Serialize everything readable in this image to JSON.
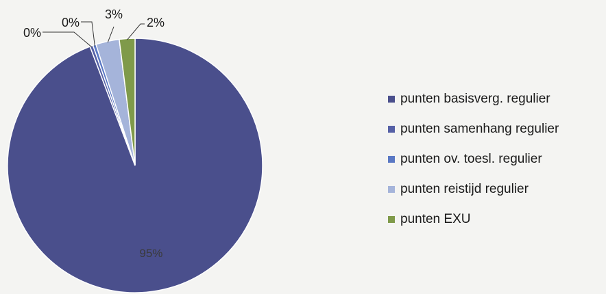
{
  "chart_data": {
    "type": "pie",
    "categories": [
      "punten basisverg. regulier",
      "punten samenhang regulier",
      "punten ov. toesl. regulier",
      "punten reistijd regulier",
      "punten EXU"
    ],
    "values": [
      95,
      0.4,
      0.4,
      3,
      2
    ],
    "data_labels": [
      "95%",
      "0%",
      "0%",
      "3%",
      "2%"
    ],
    "colors": [
      "#4a4f8c",
      "#5560a6",
      "#5a78c4",
      "#a5b4da",
      "#7f9a4a"
    ],
    "legend_position": "right",
    "start_angle": "top",
    "direction": "clockwise"
  }
}
